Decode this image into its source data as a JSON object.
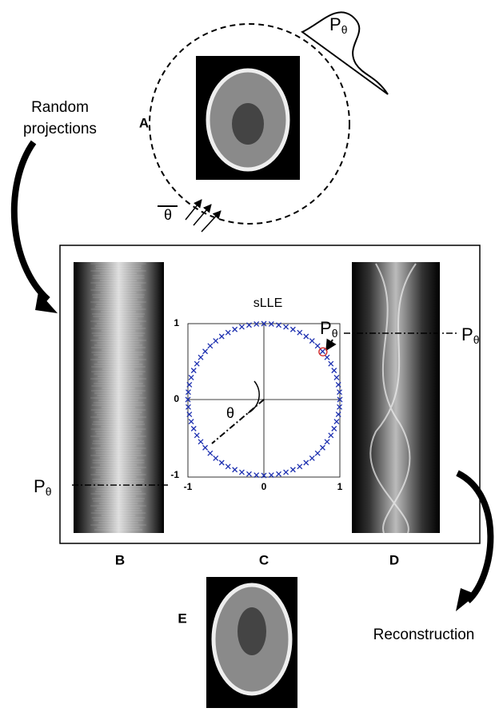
{
  "panels": {
    "a": "A",
    "b": "B",
    "c": "C",
    "d": "D",
    "e": "E"
  },
  "captions": {
    "random_projections": [
      "Random",
      "projections"
    ],
    "reconstruction": "Reconstruction"
  },
  "plot": {
    "title": "sLLE",
    "xticks": [
      -1,
      0,
      1
    ],
    "yticks": [
      -1,
      0,
      1
    ],
    "angle_label": "θ"
  },
  "projection_labels": [
    {
      "base": "P",
      "sub": "θ"
    },
    {
      "base": "P",
      "sub": "θ"
    },
    {
      "base": "P",
      "sub": "θ"
    },
    {
      "base": "P",
      "sub": "θ"
    }
  ],
  "scan_angle_label": "θ"
}
